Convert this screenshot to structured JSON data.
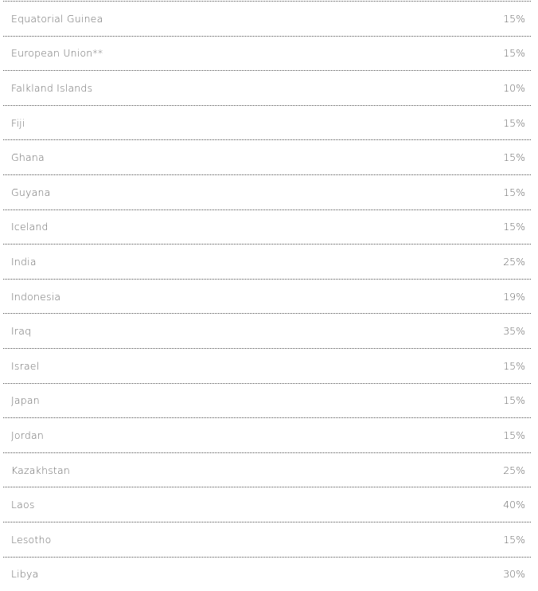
{
  "rows": [
    {
      "country": "Equatorial Guinea",
      "rate": "15%"
    },
    {
      "country": "European Union**",
      "rate": "15%"
    },
    {
      "country": "Falkland Islands",
      "rate": "10%"
    },
    {
      "country": "Fiji",
      "rate": "15%"
    },
    {
      "country": "Ghana",
      "rate": "15%"
    },
    {
      "country": "Guyana",
      "rate": "15%"
    },
    {
      "country": "Iceland",
      "rate": "15%"
    },
    {
      "country": "India",
      "rate": "25%"
    },
    {
      "country": "Indonesia",
      "rate": "19%"
    },
    {
      "country": "Iraq",
      "rate": "35%"
    },
    {
      "country": "Israel",
      "rate": "15%"
    },
    {
      "country": "Japan",
      "rate": "15%"
    },
    {
      "country": "Jordan",
      "rate": "15%"
    },
    {
      "country": "Kazakhstan",
      "rate": "25%"
    },
    {
      "country": "Laos",
      "rate": "40%"
    },
    {
      "country": "Lesotho",
      "rate": "15%"
    },
    {
      "country": "Libya",
      "rate": "30%"
    }
  ]
}
